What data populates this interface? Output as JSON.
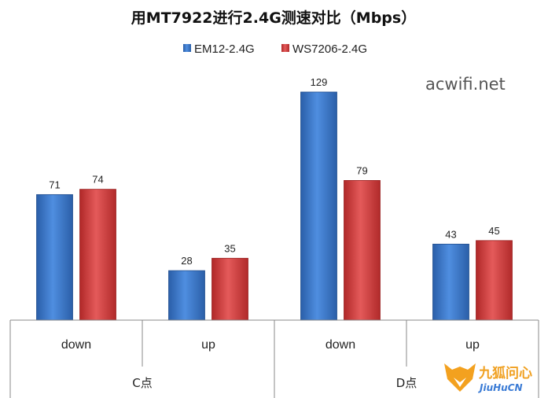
{
  "chart_data": {
    "type": "bar",
    "title": "用MT7922进行2.4G测速对比（Mbps）",
    "groups": [
      "C点",
      "D点"
    ],
    "categories": [
      "down",
      "up",
      "down",
      "up"
    ],
    "series": [
      {
        "name": "EM12-2.4G",
        "values": [
          71,
          28,
          129,
          43
        ]
      },
      {
        "name": "WS7206-2.4G",
        "values": [
          74,
          35,
          79,
          45
        ]
      }
    ],
    "ylim": [
      0,
      129
    ],
    "grid": false,
    "legend_position": "top"
  },
  "colors": {
    "series_0": "#3a72c4",
    "series_1": "#d23a3a"
  },
  "watermark": "acwifi.net",
  "logo": {
    "cn": "九狐问心",
    "en": "JiuHuCN",
    "icon": "fox-logo-icon"
  }
}
